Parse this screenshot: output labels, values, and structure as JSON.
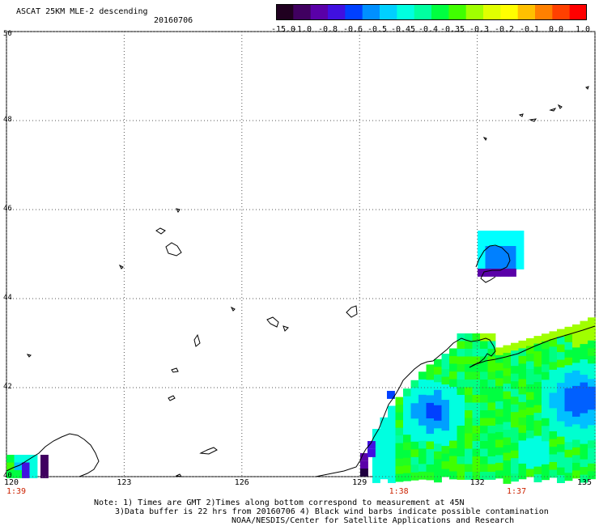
{
  "header": {
    "title": "ASCAT 25KM MLE-2 descending",
    "date": "20160706"
  },
  "colorbar": {
    "labels": [
      "-15.0",
      "-1.0",
      "-0.8",
      "-0.6",
      "-0.5",
      "-0.45",
      "-0.4",
      "-0.35",
      "-0.3",
      "-0.2",
      "-0.1",
      "0.0",
      "1.0"
    ],
    "colors": [
      "#200020",
      "#400060",
      "#5a00a8",
      "#4010e0",
      "#0040ff",
      "#0090ff",
      "#00d0ff",
      "#00ffe0",
      "#00ffa0",
      "#00ff40",
      "#40ff00",
      "#a0ff00",
      "#e0ff00",
      "#ffff00",
      "#ffc000",
      "#ff8000",
      "#ff4000",
      "#ff0000"
    ]
  },
  "map": {
    "lat_labels": [
      "50",
      "48",
      "46",
      "44",
      "42",
      "40"
    ],
    "lon_labels": [
      "120",
      "123",
      "126",
      "129",
      "132",
      "135"
    ],
    "time_labels": [
      {
        "lon": 120,
        "text": "1:39"
      },
      {
        "lon": 130,
        "text": "1:38"
      },
      {
        "lon": 133,
        "text": "1:37"
      }
    ],
    "colors": {
      "grid": "#555555",
      "coast": "#000000",
      "time_label": "#cc2200"
    }
  },
  "footer": {
    "line1": "Note: 1) Times are GMT 2)Times along bottom correspond to measurement at 45N",
    "line2": "3)Data buffer is 22 hrs from 20160706 4) Black wind barbs indicate possible contamination",
    "line3": "NOAA/NESDIS/Center for Satellite Applications and Research"
  }
}
